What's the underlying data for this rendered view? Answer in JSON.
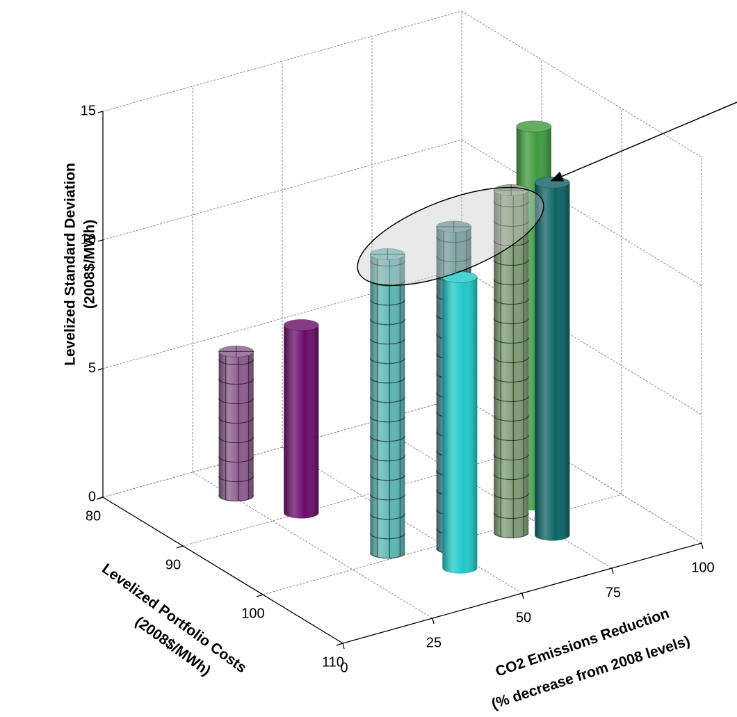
{
  "chart_data": {
    "type": "bar3d",
    "x_label": [
      "Levelized Portfolio Costs",
      "(2008$/MWh)"
    ],
    "y_label": [
      "CO2 Emissions Reduction",
      "(% decrease from 2008 levels)"
    ],
    "z_label": [
      "Levelized Standard Deviation",
      "(2008$/MWh)"
    ],
    "xlim": [
      80,
      110
    ],
    "xticks": [
      80,
      90,
      100,
      110
    ],
    "ylim": [
      0,
      100
    ],
    "yticks": [
      0,
      25,
      50,
      75,
      100
    ],
    "zlim": [
      0,
      15
    ],
    "zticks": [
      0,
      5,
      10,
      15
    ],
    "grid": true,
    "bars": [
      {
        "x": 85,
        "y": 26,
        "z": 5.6,
        "color": "#8a5a8c",
        "pattern": "hatched"
      },
      {
        "x": 98,
        "y": 80,
        "z": 14.7,
        "color": "#3e9a3e",
        "pattern": "solid"
      },
      {
        "x": 90,
        "y": 33,
        "z": 7.3,
        "color": "#6a0a6a",
        "pattern": "solid"
      },
      {
        "x": 101,
        "y": 67,
        "z": 13.3,
        "color": "#7d9c74",
        "pattern": "hatched"
      },
      {
        "x": 103,
        "y": 74,
        "z": 13.7,
        "color": "#0a6262",
        "pattern": "solid"
      },
      {
        "x": 101,
        "y": 51,
        "z": 12.5,
        "color": "#4f8a8f",
        "pattern": "hatched"
      },
      {
        "x": 99,
        "y": 37,
        "z": 11.6,
        "color": "#5bb5b5",
        "pattern": "hatched"
      },
      {
        "x": 104,
        "y": 46,
        "z": 11.3,
        "color": "#1ec8c8",
        "pattern": "solid"
      }
    ]
  }
}
